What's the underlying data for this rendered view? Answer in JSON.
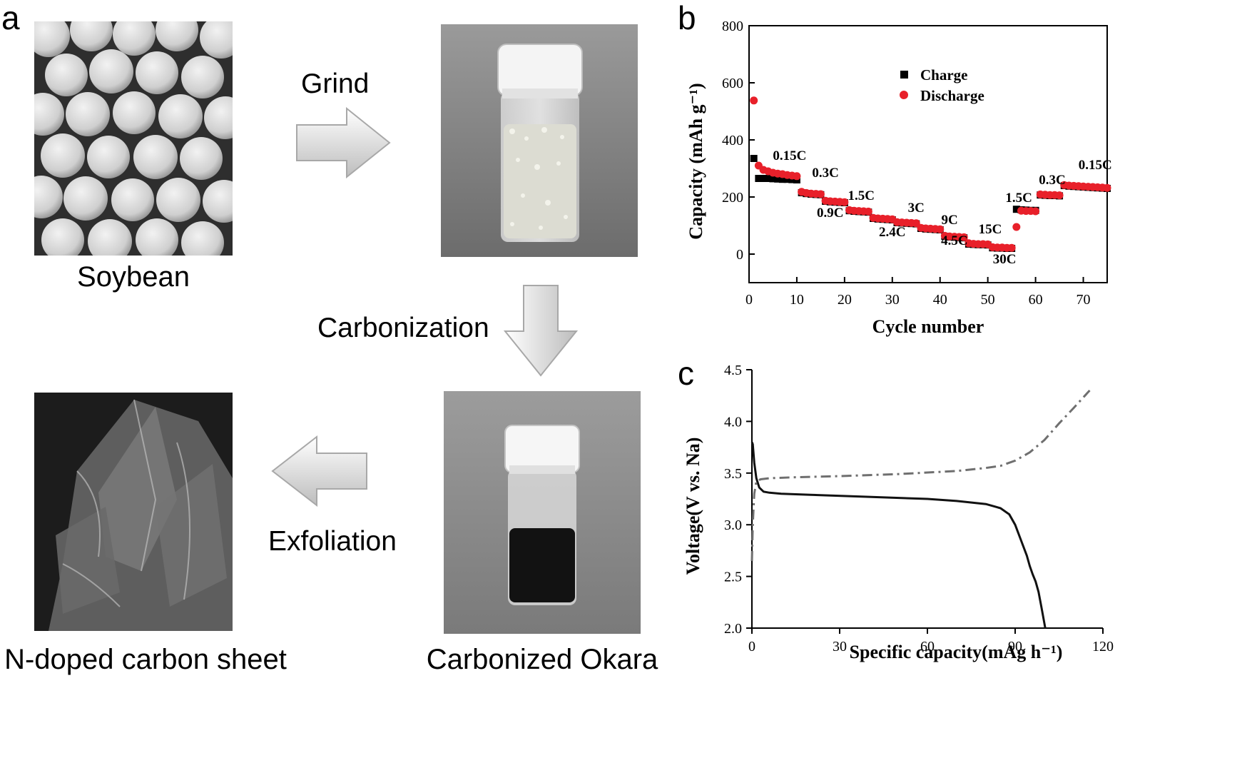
{
  "panels": {
    "a": "a",
    "b": "b",
    "c": "c"
  },
  "flow": {
    "images": {
      "soybean": "Soybean",
      "powder": "",
      "okara": "Carbonized Okara",
      "sheet": "N-doped carbon sheet"
    },
    "steps": {
      "grind": "Grind",
      "carbonization": "Carbonization",
      "exfoliation": "Exfoliation"
    }
  },
  "chart_data": [
    {
      "type": "scatter",
      "xlabel": "Cycle number",
      "ylabel": "Capacity (mAh g⁻¹)",
      "xlim": [
        0,
        75
      ],
      "ylim": [
        -100,
        800
      ],
      "xticks": [
        0,
        10,
        20,
        30,
        40,
        50,
        60,
        70
      ],
      "yticks": [
        0,
        200,
        400,
        600,
        800
      ],
      "legend": "top-center",
      "series": [
        {
          "name": "Charge",
          "color": "#000000",
          "marker": "square",
          "x": [
            1,
            2,
            3,
            4,
            5,
            6,
            7,
            8,
            9,
            10,
            11,
            12,
            13,
            14,
            15,
            16,
            17,
            18,
            19,
            20,
            21,
            22,
            23,
            24,
            25,
            26,
            27,
            28,
            29,
            30,
            31,
            32,
            33,
            34,
            35,
            36,
            37,
            38,
            39,
            40,
            41,
            42,
            43,
            44,
            45,
            46,
            47,
            48,
            49,
            50,
            51,
            52,
            53,
            54,
            55,
            56,
            57,
            58,
            59,
            60,
            61,
            62,
            63,
            64,
            65,
            66,
            67,
            68,
            69,
            70,
            71,
            72,
            73,
            74,
            75
          ],
          "y": [
            335,
            265,
            265,
            265,
            264,
            263,
            262,
            262,
            261,
            260,
            215,
            212,
            210,
            209,
            208,
            185,
            183,
            182,
            181,
            180,
            152,
            150,
            149,
            148,
            147,
            125,
            123,
            122,
            121,
            120,
            110,
            109,
            108,
            107,
            106,
            90,
            88,
            87,
            86,
            85,
            62,
            60,
            59,
            58,
            57,
            35,
            34,
            33,
            33,
            32,
            22,
            21,
            21,
            20,
            20,
            157,
            155,
            154,
            153,
            153,
            207,
            206,
            205,
            205,
            204,
            240,
            238,
            237,
            236,
            235,
            234,
            233,
            232,
            231,
            230
          ]
        },
        {
          "name": "Discharge",
          "color": "#e8202a",
          "marker": "circle",
          "x": [
            1,
            2,
            3,
            4,
            5,
            6,
            7,
            8,
            9,
            10,
            11,
            12,
            13,
            14,
            15,
            16,
            17,
            18,
            19,
            20,
            21,
            22,
            23,
            24,
            25,
            26,
            27,
            28,
            29,
            30,
            31,
            32,
            33,
            34,
            35,
            36,
            37,
            38,
            39,
            40,
            41,
            42,
            43,
            44,
            45,
            46,
            47,
            48,
            49,
            50,
            51,
            52,
            53,
            54,
            55,
            56,
            57,
            58,
            59,
            60,
            61,
            62,
            63,
            64,
            65,
            66,
            67,
            68,
            69,
            70,
            71,
            72,
            73,
            74,
            75
          ],
          "y": [
            538,
            310,
            295,
            290,
            285,
            282,
            280,
            277,
            275,
            273,
            218,
            214,
            212,
            211,
            210,
            187,
            185,
            184,
            183,
            182,
            154,
            152,
            151,
            150,
            149,
            127,
            125,
            124,
            123,
            122,
            112,
            111,
            110,
            109,
            108,
            92,
            90,
            89,
            88,
            87,
            64,
            62,
            61,
            60,
            59,
            38,
            36,
            35,
            35,
            34,
            24,
            23,
            23,
            22,
            22,
            95,
            152,
            151,
            151,
            150,
            209,
            208,
            207,
            207,
            206,
            242,
            240,
            239,
            238,
            237,
            236,
            235,
            234,
            233,
            232
          ]
        }
      ],
      "annotations": [
        {
          "text": "0.15C",
          "x": 8.5,
          "y": 330
        },
        {
          "text": "0.3C",
          "x": 16,
          "y": 270
        },
        {
          "text": "0.9C",
          "x": 17,
          "y": 130
        },
        {
          "text": "1.5C",
          "x": 23.5,
          "y": 190
        },
        {
          "text": "2.4C",
          "x": 30,
          "y": 63
        },
        {
          "text": "3C",
          "x": 35,
          "y": 148
        },
        {
          "text": "4.5C",
          "x": 43,
          "y": 33
        },
        {
          "text": "9C",
          "x": 42,
          "y": 105
        },
        {
          "text": "15C",
          "x": 50.5,
          "y": 73
        },
        {
          "text": "30C",
          "x": 53.5,
          "y": -33
        },
        {
          "text": "1.5C",
          "x": 56.5,
          "y": 183
        },
        {
          "text": "0.3C",
          "x": 63.5,
          "y": 245
        },
        {
          "text": "0.15C",
          "x": 72.5,
          "y": 298
        }
      ]
    },
    {
      "type": "line",
      "xlabel": "Specific capacity(mAg h⁻¹)",
      "ylabel": "Voltage(V vs. Na)",
      "xlim": [
        0,
        120
      ],
      "ylim": [
        2.0,
        4.5
      ],
      "xticks": [
        0,
        30,
        60,
        90,
        120
      ],
      "yticks": [
        "2.0",
        "2.5",
        "3.0",
        "3.5",
        "4.0",
        "4.5"
      ],
      "series": [
        {
          "name": "",
          "color": "#111111",
          "style": "solid",
          "x": [
            0,
            0.3,
            0.8,
            1.5,
            2.5,
            4,
            6,
            10,
            20,
            40,
            60,
            70,
            80,
            85,
            88,
            90,
            92,
            94,
            95,
            96,
            97,
            98,
            99,
            100.3
          ],
          "y": [
            3.8,
            3.78,
            3.6,
            3.45,
            3.36,
            3.32,
            3.31,
            3.3,
            3.29,
            3.27,
            3.25,
            3.23,
            3.2,
            3.16,
            3.1,
            3.0,
            2.85,
            2.7,
            2.6,
            2.52,
            2.45,
            2.35,
            2.2,
            2.0
          ]
        },
        {
          "name": "",
          "color": "#6f6f6f",
          "style": "dashdot",
          "x": [
            0,
            0.3,
            0.8,
            1.5,
            3,
            6,
            15,
            30,
            50,
            70,
            80,
            85,
            90,
            95,
            100,
            105,
            110,
            115.5
          ],
          "y": [
            2.65,
            3.0,
            3.3,
            3.42,
            3.44,
            3.45,
            3.46,
            3.47,
            3.49,
            3.52,
            3.55,
            3.57,
            3.62,
            3.7,
            3.82,
            3.98,
            4.13,
            4.3
          ]
        }
      ]
    }
  ]
}
